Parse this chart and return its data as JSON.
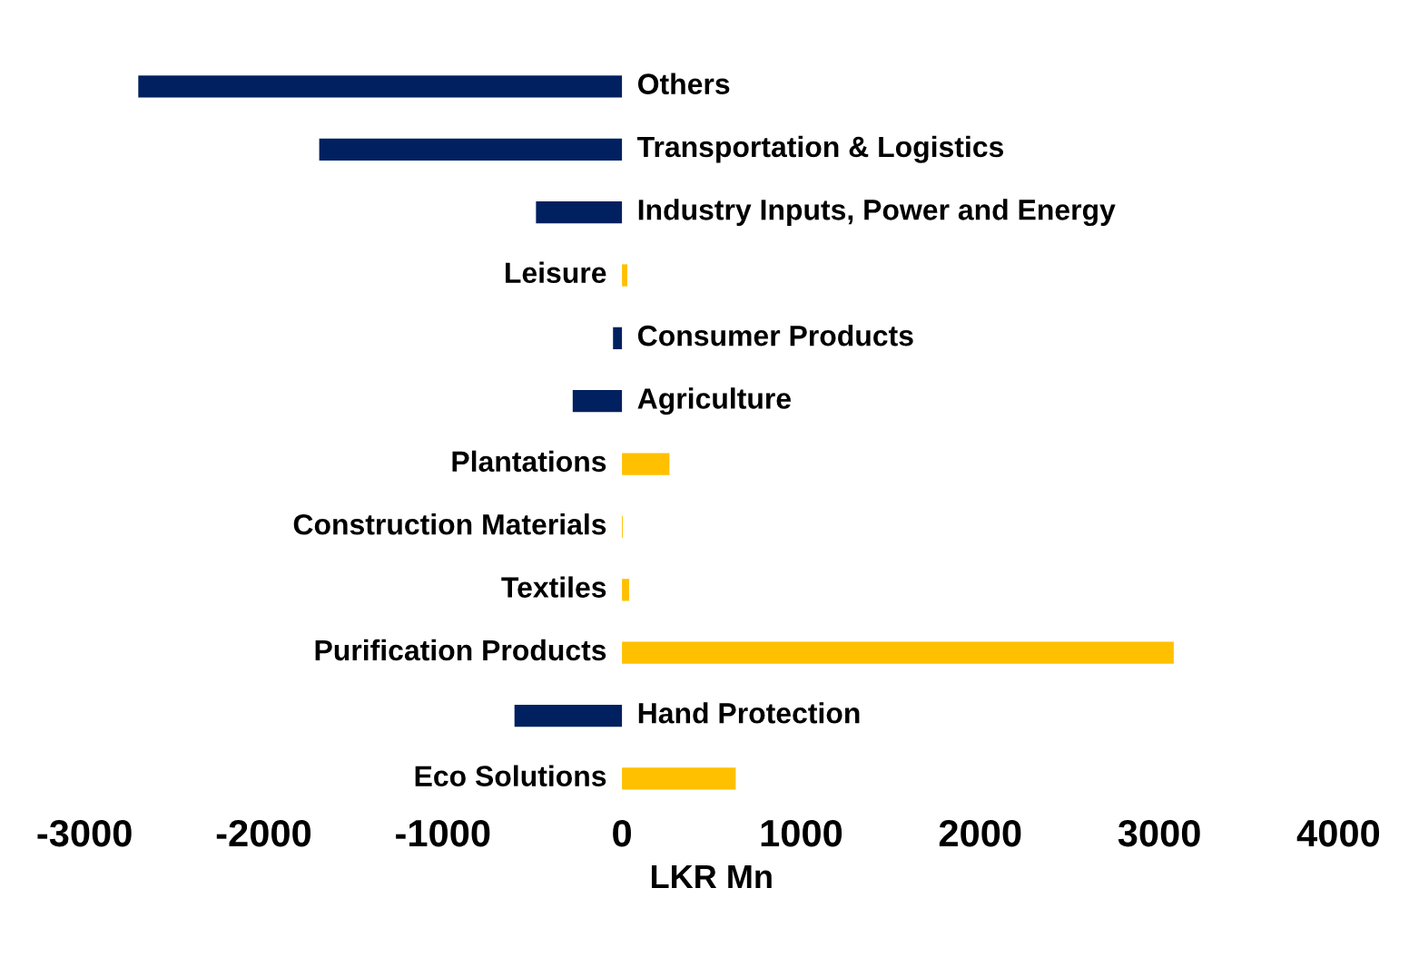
{
  "chart_data": {
    "type": "bar",
    "orientation": "horizontal",
    "xlabel": "LKR Mn",
    "categories": [
      "Others",
      "Transportation & Logistics",
      "Industry Inputs, Power and Energy",
      "Leisure",
      "Consumer Products",
      "Agriculture",
      "Plantations",
      "Construction Materials",
      "Textiles",
      "Purification Products",
      "Hand Protection",
      "Eco Solutions"
    ],
    "values": [
      -2700,
      -1690,
      -480,
      30,
      -50,
      -275,
      265,
      5,
      40,
      3080,
      -600,
      635
    ],
    "colors": [
      "#002060",
      "#002060",
      "#002060",
      "#ffc000",
      "#002060",
      "#002060",
      "#ffc000",
      "#ffc000",
      "#ffc000",
      "#ffc000",
      "#002060",
      "#ffc000"
    ],
    "xlim": [
      -3000,
      4000
    ],
    "xticks": [
      -3000,
      -2000,
      -1000,
      0,
      1000,
      2000,
      3000,
      4000
    ],
    "grid": false,
    "tick_labels": "x"
  }
}
